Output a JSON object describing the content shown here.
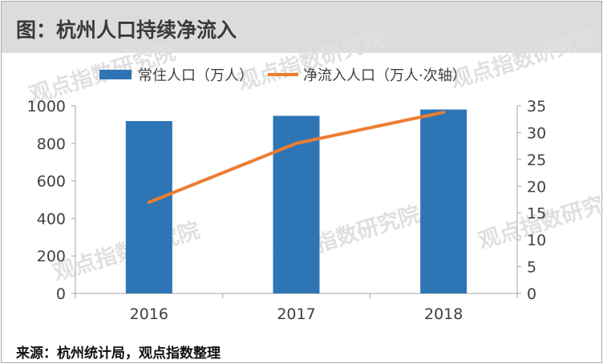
{
  "header": {
    "title": "图：杭州人口持续净流入"
  },
  "footer": {
    "source": "来源：杭州统计局，观点指数整理"
  },
  "watermark": {
    "text": "观点指数研究院",
    "color": "#e0e0e0"
  },
  "colors": {
    "bar": "#2e75b6",
    "line": "#ed7d31",
    "axis": "#a6a6a6",
    "text": "#404040"
  },
  "chart_data": {
    "type": "bar+line",
    "categories": [
      "2016",
      "2017",
      "2018"
    ],
    "series": [
      {
        "name": "常住人口（万人）",
        "type": "bar",
        "axis": "left",
        "values": [
          918.8,
          946.8,
          980.6
        ]
      },
      {
        "name": "净流入人口（万人·次轴）",
        "type": "line",
        "axis": "right",
        "values": [
          17.0,
          28.0,
          33.8
        ]
      }
    ],
    "y_left": {
      "min": 0,
      "max": 1000,
      "ticks": [
        "0",
        "200",
        "400",
        "600",
        "800",
        "1000"
      ]
    },
    "y_right": {
      "min": 0,
      "max": 35,
      "ticks": [
        "0",
        "5",
        "10",
        "15",
        "20",
        "25",
        "30",
        "35"
      ]
    },
    "legend_position": "top",
    "grid": false
  }
}
